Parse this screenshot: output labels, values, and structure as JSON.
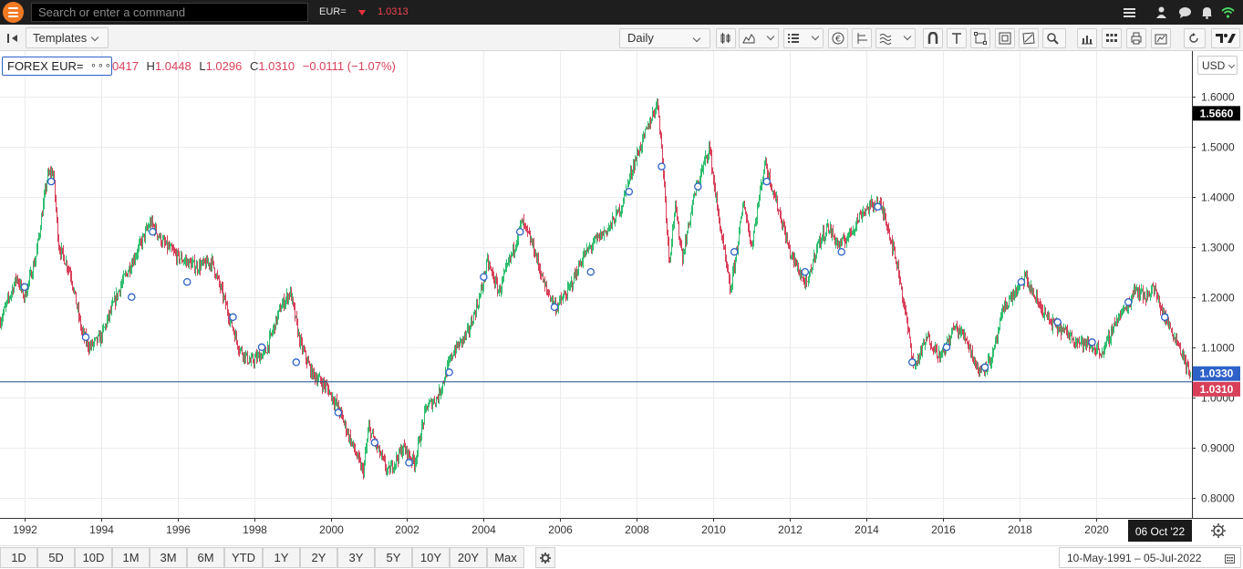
{
  "app": {
    "search_placeholder": "Search or enter a command",
    "ric": "EUR=",
    "ric_price": "1.0313",
    "colors": {
      "accent": "#f07a22",
      "up": "#2fbf6f",
      "down": "#d8405a",
      "line": "#2e62c8"
    }
  },
  "toolbar": {
    "templates_label": "Templates",
    "interval_label": "Daily"
  },
  "legend": {
    "instrument": "FOREX EUR=",
    "more": "∘∘∘",
    "open_partial": "0417",
    "high_label": "H",
    "high": "1.0448",
    "low_label": "L",
    "low": "1.0296",
    "close_label": "C",
    "close": "1.0310",
    "change": "−0.0111 (−1.07%)"
  },
  "currency_label": "USD",
  "chart_data": {
    "type": "candlestick",
    "x_ticks": [
      "1992",
      "1994",
      "1996",
      "1998",
      "2000",
      "2002",
      "2004",
      "2006",
      "2008",
      "2010",
      "2012",
      "2014",
      "2016",
      "2018",
      "2020"
    ],
    "x_range": [
      1991.36,
      2022.51
    ],
    "y_ticks": [
      "0.8000",
      "0.9000",
      "1.0000",
      "1.1000",
      "1.2000",
      "1.3000",
      "1.4000",
      "1.5000",
      "1.6000"
    ],
    "y_range": [
      0.76,
      1.69
    ],
    "price_path": [
      [
        1991.36,
        1.15
      ],
      [
        1991.8,
        1.24
      ],
      [
        1992.0,
        1.2
      ],
      [
        1992.3,
        1.28
      ],
      [
        1992.6,
        1.44
      ],
      [
        1992.75,
        1.45
      ],
      [
        1992.9,
        1.3
      ],
      [
        1993.2,
        1.25
      ],
      [
        1993.5,
        1.13
      ],
      [
        1993.7,
        1.1
      ],
      [
        1994.0,
        1.12
      ],
      [
        1994.5,
        1.22
      ],
      [
        1995.0,
        1.3
      ],
      [
        1995.3,
        1.35
      ],
      [
        1995.6,
        1.31
      ],
      [
        1996.0,
        1.28
      ],
      [
        1996.5,
        1.26
      ],
      [
        1996.9,
        1.27
      ],
      [
        1997.2,
        1.2
      ],
      [
        1997.6,
        1.1
      ],
      [
        1997.9,
        1.07
      ],
      [
        1998.3,
        1.09
      ],
      [
        1998.7,
        1.18
      ],
      [
        1998.95,
        1.21
      ],
      [
        1999.2,
        1.11
      ],
      [
        1999.5,
        1.05
      ],
      [
        1999.9,
        1.02
      ],
      [
        2000.2,
        0.98
      ],
      [
        2000.5,
        0.92
      ],
      [
        2000.85,
        0.85
      ],
      [
        2001.0,
        0.94
      ],
      [
        2001.5,
        0.85
      ],
      [
        2001.9,
        0.9
      ],
      [
        2002.2,
        0.87
      ],
      [
        2002.5,
        0.98
      ],
      [
        2002.8,
        1.0
      ],
      [
        2003.2,
        1.09
      ],
      [
        2003.6,
        1.13
      ],
      [
        2003.9,
        1.2
      ],
      [
        2004.1,
        1.27
      ],
      [
        2004.4,
        1.21
      ],
      [
        2004.8,
        1.3
      ],
      [
        2005.0,
        1.35
      ],
      [
        2005.3,
        1.3
      ],
      [
        2005.6,
        1.22
      ],
      [
        2005.9,
        1.18
      ],
      [
        2006.2,
        1.21
      ],
      [
        2006.6,
        1.28
      ],
      [
        2006.9,
        1.31
      ],
      [
        2007.3,
        1.34
      ],
      [
        2007.6,
        1.38
      ],
      [
        2007.9,
        1.46
      ],
      [
        2008.2,
        1.52
      ],
      [
        2008.55,
        1.59
      ],
      [
        2008.7,
        1.45
      ],
      [
        2008.85,
        1.27
      ],
      [
        2009.0,
        1.38
      ],
      [
        2009.2,
        1.28
      ],
      [
        2009.5,
        1.4
      ],
      [
        2009.9,
        1.5
      ],
      [
        2010.1,
        1.38
      ],
      [
        2010.45,
        1.21
      ],
      [
        2010.8,
        1.39
      ],
      [
        2011.0,
        1.3
      ],
      [
        2011.35,
        1.47
      ],
      [
        2011.8,
        1.35
      ],
      [
        2012.0,
        1.29
      ],
      [
        2012.45,
        1.22
      ],
      [
        2012.7,
        1.3
      ],
      [
        2013.0,
        1.34
      ],
      [
        2013.3,
        1.3
      ],
      [
        2013.6,
        1.33
      ],
      [
        2013.9,
        1.37
      ],
      [
        2014.3,
        1.39
      ],
      [
        2014.5,
        1.36
      ],
      [
        2014.85,
        1.25
      ],
      [
        2015.1,
        1.13
      ],
      [
        2015.25,
        1.06
      ],
      [
        2015.6,
        1.12
      ],
      [
        2015.95,
        1.08
      ],
      [
        2016.3,
        1.14
      ],
      [
        2016.6,
        1.12
      ],
      [
        2016.95,
        1.05
      ],
      [
        2017.3,
        1.08
      ],
      [
        2017.6,
        1.18
      ],
      [
        2018.0,
        1.22
      ],
      [
        2018.15,
        1.24
      ],
      [
        2018.4,
        1.2
      ],
      [
        2018.8,
        1.15
      ],
      [
        2019.2,
        1.13
      ],
      [
        2019.6,
        1.11
      ],
      [
        2019.9,
        1.1
      ],
      [
        2020.2,
        1.09
      ],
      [
        2020.5,
        1.15
      ],
      [
        2020.9,
        1.19
      ],
      [
        2021.0,
        1.22
      ],
      [
        2021.3,
        1.2
      ],
      [
        2021.5,
        1.22
      ],
      [
        2021.8,
        1.16
      ],
      [
        2022.0,
        1.13
      ],
      [
        2022.2,
        1.1
      ],
      [
        2022.51,
        1.031
      ]
    ],
    "markers": [
      [
        1992.0,
        1.22
      ],
      [
        1992.7,
        1.43
      ],
      [
        1993.6,
        1.12
      ],
      [
        1994.8,
        1.2
      ],
      [
        1995.35,
        1.33
      ],
      [
        1996.25,
        1.23
      ],
      [
        1997.45,
        1.16
      ],
      [
        1998.2,
        1.1
      ],
      [
        1999.1,
        1.07
      ],
      [
        2000.2,
        0.97
      ],
      [
        2001.15,
        0.91
      ],
      [
        2002.05,
        0.87
      ],
      [
        2003.1,
        1.05
      ],
      [
        2004.0,
        1.24
      ],
      [
        2004.95,
        1.33
      ],
      [
        2005.85,
        1.18
      ],
      [
        2006.8,
        1.25
      ],
      [
        2007.8,
        1.41
      ],
      [
        2008.65,
        1.46
      ],
      [
        2009.6,
        1.42
      ],
      [
        2010.55,
        1.29
      ],
      [
        2011.4,
        1.43
      ],
      [
        2012.4,
        1.25
      ],
      [
        2013.35,
        1.29
      ],
      [
        2014.3,
        1.38
      ],
      [
        2015.2,
        1.07
      ],
      [
        2016.1,
        1.1
      ],
      [
        2017.1,
        1.06
      ],
      [
        2018.05,
        1.23
      ],
      [
        2019.0,
        1.15
      ],
      [
        2019.9,
        1.11
      ],
      [
        2020.85,
        1.19
      ],
      [
        2021.8,
        1.16
      ]
    ],
    "current_level": 1.031,
    "scale_labels": [
      {
        "value": 1.566,
        "text": "1.5660",
        "color": "#000000"
      },
      {
        "value": 1.033,
        "text": "1.0330",
        "color": "#2e62c8"
      },
      {
        "value": 1.031,
        "text": "1.0310",
        "color": "#d8405a"
      }
    ],
    "crosshair_date": "06 Oct '22",
    "grid": true
  },
  "range_buttons": [
    "1D",
    "5D",
    "10D",
    "1M",
    "3M",
    "6M",
    "YTD",
    "1Y",
    "2Y",
    "3Y",
    "5Y",
    "10Y",
    "20Y",
    "Max"
  ],
  "date_range": "10-May-1991  –  05-Jul-2022"
}
